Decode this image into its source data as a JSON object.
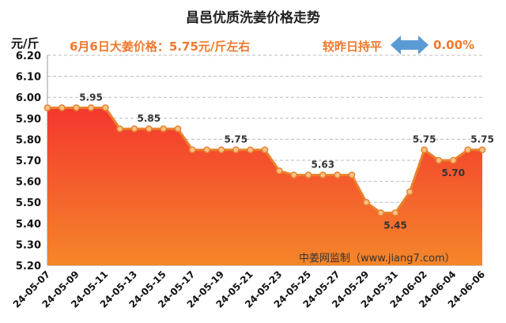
{
  "chart_data": {
    "type": "area",
    "title": "昌邑优质洗姜价格走势",
    "ylabel": "元/斤",
    "ylim": [
      5.2,
      6.2
    ],
    "yticks": [
      "5.20",
      "5.30",
      "5.40",
      "5.50",
      "5.60",
      "5.70",
      "5.80",
      "5.90",
      "6.00",
      "6.10",
      "6.20"
    ],
    "x": [
      "24-05-07",
      "24-05-08",
      "24-05-09",
      "24-05-10",
      "24-05-11",
      "24-05-12",
      "24-05-13",
      "24-05-14",
      "24-05-15",
      "24-05-16",
      "24-05-17",
      "24-05-18",
      "24-05-19",
      "24-05-20",
      "24-05-21",
      "24-05-22",
      "24-05-23",
      "24-05-24",
      "24-05-25",
      "24-05-26",
      "24-05-27",
      "24-05-28",
      "24-05-29",
      "24-05-30",
      "24-05-31",
      "24-06-01",
      "24-06-02",
      "24-06-03",
      "24-06-04",
      "24-06-05",
      "24-06-06"
    ],
    "xticks": [
      "24-05-07",
      "24-05-09",
      "24-05-11",
      "24-05-13",
      "24-05-15",
      "24-05-17",
      "24-05-19",
      "24-05-21",
      "24-05-23",
      "24-05-25",
      "24-05-27",
      "24-05-29",
      "24-05-31",
      "24-06-02",
      "24-06-04",
      "24-06-06"
    ],
    "values": [
      5.95,
      5.95,
      5.95,
      5.95,
      5.95,
      5.85,
      5.85,
      5.85,
      5.85,
      5.85,
      5.75,
      5.75,
      5.75,
      5.75,
      5.75,
      5.75,
      5.65,
      5.63,
      5.63,
      5.63,
      5.63,
      5.63,
      5.5,
      5.45,
      5.45,
      5.55,
      5.75,
      5.7,
      5.7,
      5.75,
      5.75
    ],
    "data_labels": [
      {
        "index": 3,
        "text": "5.95",
        "pos": "above"
      },
      {
        "index": 7,
        "text": "5.85",
        "pos": "above"
      },
      {
        "index": 13,
        "text": "5.75",
        "pos": "above"
      },
      {
        "index": 19,
        "text": "5.63",
        "pos": "above"
      },
      {
        "index": 24,
        "text": "5.45",
        "pos": "below"
      },
      {
        "index": 26,
        "text": "5.75",
        "pos": "above"
      },
      {
        "index": 28,
        "text": "5.70",
        "pos": "below"
      },
      {
        "index": 30,
        "text": "5.75",
        "pos": "above"
      }
    ],
    "grid": true,
    "colors": {
      "line": "#e8822c",
      "marker_fill": "#f6c28a",
      "fill_top": "#f4372e",
      "fill_bottom": "#f5862a",
      "headline": "#f0782c",
      "arrow": "#5b9bd5"
    }
  },
  "headline": "6月6日大姜价格：5.75元/斤左右",
  "change": {
    "label": "较昨日持平",
    "value": "0.00%",
    "icon": "left-right-arrow-icon"
  },
  "source": "中姜网监制（www.jiang7.com）"
}
